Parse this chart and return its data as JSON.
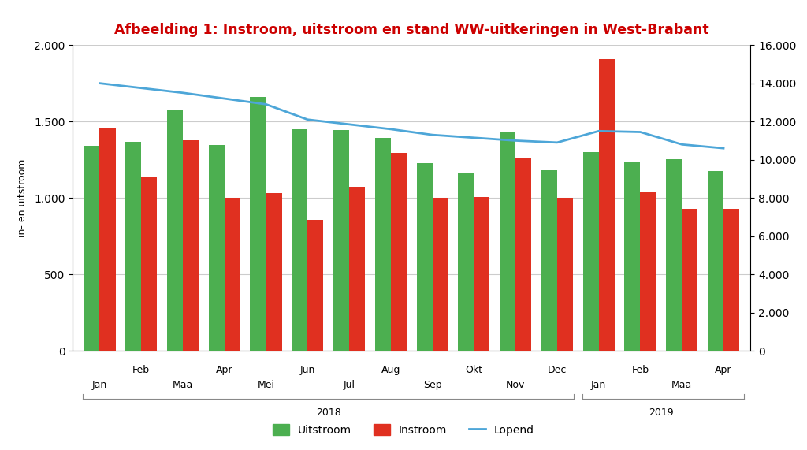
{
  "title": "Afbeelding 1: Instroom, uitstroom en stand WW-uitkeringen in West-Brabant",
  "title_color": "#cc0000",
  "ylabel_left": "in- en uitstroom",
  "months_odd": [
    "Jan",
    "Maa",
    "Mei",
    "Jul",
    "Sep",
    "Nov",
    "Jan",
    "Maa"
  ],
  "months_odd_pos": [
    0,
    2,
    4,
    6,
    8,
    10,
    12,
    14
  ],
  "months_even": [
    "Feb",
    "Apr",
    "Jun",
    "Aug",
    "Okt",
    "Dec",
    "Feb",
    "Apr"
  ],
  "months_even_pos": [
    1,
    3,
    5,
    7,
    9,
    11,
    13,
    15
  ],
  "uitstroom": [
    1340,
    1365,
    1580,
    1345,
    1660,
    1450,
    1445,
    1395,
    1230,
    1165,
    1430,
    1180,
    1300,
    1235,
    1255,
    1175
  ],
  "instroom": [
    1455,
    1135,
    1375,
    1000,
    1030,
    855,
    1075,
    1295,
    1000,
    1005,
    1265,
    1000,
    1910,
    1045,
    930,
    930
  ],
  "lopend": [
    14000,
    13750,
    13500,
    13200,
    12900,
    12100,
    11850,
    11600,
    11300,
    11150,
    11000,
    10900,
    11500,
    11450,
    10800,
    10600
  ],
  "bar_width": 0.38,
  "ylim_left": [
    0,
    2000
  ],
  "ylim_right": [
    0,
    16000
  ],
  "yticks_left": [
    0,
    500,
    1000,
    1500,
    2000
  ],
  "yticks_right": [
    0,
    2000,
    4000,
    6000,
    8000,
    10000,
    12000,
    14000,
    16000
  ],
  "green_color": "#4CAF50",
  "red_color": "#e03020",
  "blue_color": "#4da6d8",
  "bg_color": "#ffffff",
  "grid_color": "#cccccc",
  "year_2018_label": "2018",
  "year_2019_label": "2019",
  "legend_uitstroom": "Uitstroom",
  "legend_instroom": "Instroom",
  "legend_lopend": "Lopend"
}
